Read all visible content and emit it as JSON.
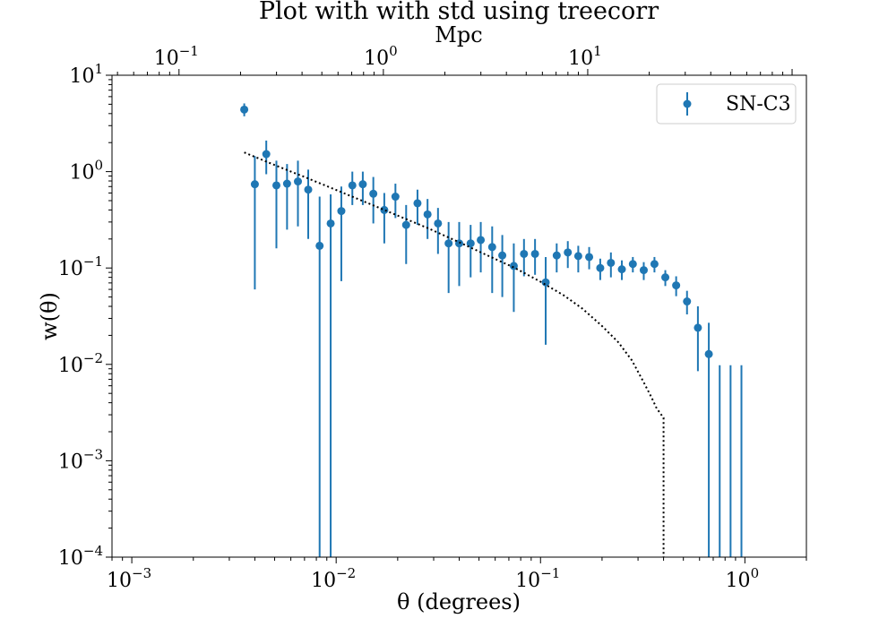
{
  "chart_data": {
    "type": "scatter",
    "title": "Plot with with std using treecorr",
    "xlabel": "θ (degrees)",
    "ylabel": "w(θ)",
    "x2label": "Mpc",
    "xscale": "log",
    "yscale": "log",
    "xlim": [
      0.0008,
      2.0
    ],
    "ylim": [
      0.0001,
      10
    ],
    "x_ticks": [
      {
        "value": 0.001,
        "base": "10",
        "exp": "−3"
      },
      {
        "value": 0.01,
        "base": "10",
        "exp": "−2"
      },
      {
        "value": 0.1,
        "base": "10",
        "exp": "−1"
      },
      {
        "value": 1,
        "base": "10",
        "exp": "0"
      }
    ],
    "y_ticks": [
      {
        "value": 0.0001,
        "base": "10",
        "exp": "−4"
      },
      {
        "value": 0.001,
        "base": "10",
        "exp": "−3"
      },
      {
        "value": 0.01,
        "base": "10",
        "exp": "−2"
      },
      {
        "value": 0.1,
        "base": "10",
        "exp": "−1"
      },
      {
        "value": 1,
        "base": "10",
        "exp": "0"
      },
      {
        "value": 10,
        "base": "10",
        "exp": "1"
      }
    ],
    "x2_ticks": [
      {
        "value": 0.1,
        "base": "10",
        "exp": "−1"
      },
      {
        "value": 1,
        "base": "10",
        "exp": "0"
      },
      {
        "value": 10,
        "base": "10",
        "exp": "1"
      }
    ],
    "x2lim": [
      0.047,
      117.5
    ],
    "grid": false,
    "legend": {
      "position": "top-right",
      "entries": [
        "SN-C3"
      ]
    },
    "series": [
      {
        "name": "SN-C3",
        "color": "#1f77b4",
        "x": [
          0.00355,
          0.004,
          0.00455,
          0.0051,
          0.00575,
          0.0065,
          0.0073,
          0.0083,
          0.0094,
          0.0106,
          0.012,
          0.0135,
          0.0152,
          0.0172,
          0.0195,
          0.022,
          0.025,
          0.028,
          0.0315,
          0.0355,
          0.04,
          0.0455,
          0.051,
          0.058,
          0.065,
          0.074,
          0.083,
          0.094,
          0.106,
          0.12,
          0.136,
          0.153,
          0.173,
          0.196,
          0.221,
          0.25,
          0.283,
          0.32,
          0.361,
          0.408,
          0.461,
          0.521,
          0.589,
          0.666,
          0.753,
          0.851,
          0.962
        ],
        "y": [
          4.4,
          0.74,
          1.52,
          0.72,
          0.75,
          0.79,
          0.65,
          0.17,
          0.29,
          0.39,
          0.72,
          0.74,
          0.59,
          0.4,
          0.55,
          0.28,
          0.47,
          0.36,
          0.29,
          0.18,
          0.18,
          0.18,
          0.195,
          0.165,
          0.135,
          0.105,
          0.14,
          0.14,
          0.071,
          0.135,
          0.145,
          0.133,
          0.13,
          0.1,
          0.113,
          0.097,
          0.11,
          0.095,
          0.11,
          0.08,
          0.066,
          0.045,
          0.024,
          0.0128,
          0.0055,
          0.01,
          0.01
        ],
        "err_low": [
          3.75,
          0.06,
          0.94,
          0.16,
          0.25,
          0.27,
          0.2,
          0.0001,
          0.0001,
          0.073,
          0.45,
          0.45,
          0.29,
          0.18,
          0.33,
          0.11,
          0.28,
          0.2,
          0.14,
          0.055,
          0.065,
          0.08,
          0.09,
          0.055,
          0.05,
          0.035,
          0.082,
          0.085,
          0.016,
          0.09,
          0.1,
          0.09,
          0.097,
          0.075,
          0.08,
          0.075,
          0.09,
          0.075,
          0.09,
          0.065,
          0.051,
          0.033,
          0.0085,
          0.0001,
          0.0001,
          0.0001,
          0.0001
        ],
        "err_high": [
          5.1,
          1.45,
          2.1,
          1.3,
          1.2,
          1.3,
          1.05,
          0.55,
          0.58,
          0.7,
          1.0,
          1.0,
          0.88,
          0.6,
          0.75,
          0.45,
          0.65,
          0.52,
          0.42,
          0.3,
          0.3,
          0.28,
          0.3,
          0.27,
          0.22,
          0.18,
          0.2,
          0.2,
          0.13,
          0.18,
          0.19,
          0.17,
          0.165,
          0.125,
          0.145,
          0.12,
          0.13,
          0.115,
          0.13,
          0.095,
          0.082,
          0.058,
          0.04,
          0.027,
          0.0098,
          0.0098,
          0.0098
        ],
        "show_marker": [
          true,
          true,
          true,
          true,
          true,
          true,
          true,
          true,
          true,
          true,
          true,
          true,
          true,
          true,
          true,
          true,
          true,
          true,
          true,
          true,
          true,
          true,
          true,
          true,
          true,
          true,
          true,
          true,
          true,
          true,
          true,
          true,
          true,
          true,
          true,
          true,
          true,
          true,
          true,
          true,
          true,
          true,
          true,
          true,
          false,
          false,
          false
        ]
      },
      {
        "name": "",
        "style": "dotted",
        "color": "#000000",
        "x": [
          0.00355,
          0.005,
          0.007,
          0.01,
          0.014,
          0.02,
          0.028,
          0.04,
          0.055,
          0.075,
          0.1,
          0.13,
          0.16,
          0.2,
          0.24,
          0.28,
          0.32,
          0.35,
          0.37,
          0.39,
          0.4,
          0.4
        ],
        "y": [
          1.58,
          1.17,
          0.88,
          0.645,
          0.48,
          0.35,
          0.26,
          0.185,
          0.135,
          0.1,
          0.072,
          0.052,
          0.038,
          0.025,
          0.017,
          0.011,
          0.0065,
          0.0045,
          0.0035,
          0.003,
          0.0028,
          0.0001
        ]
      }
    ]
  }
}
